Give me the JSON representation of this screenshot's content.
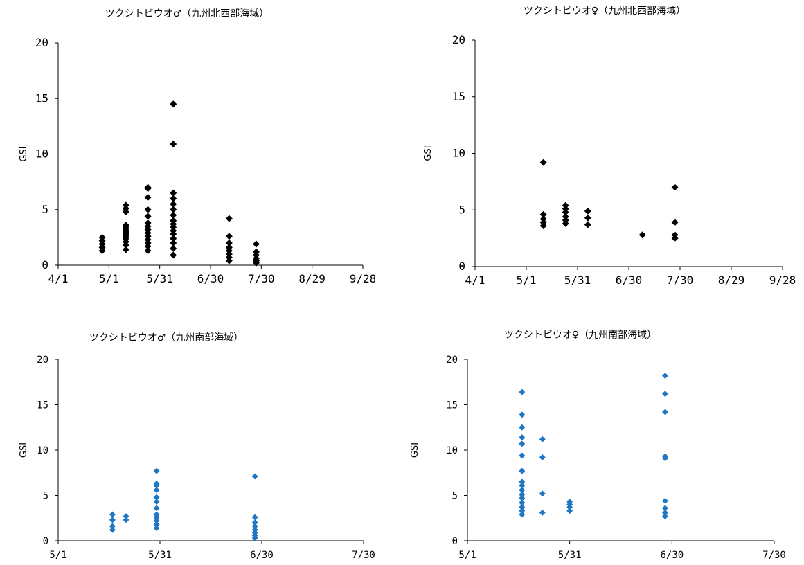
{
  "colors": {
    "black": "#000000",
    "blue": "#1f77c4"
  },
  "chart_data": [
    {
      "type": "scatter",
      "title": "ツクシトビウオ♂（九州北西部海域）",
      "ylabel": "GSI",
      "xlabel": "",
      "ylim": [
        0,
        20
      ],
      "yticks": [
        "0",
        "5",
        "10",
        "15",
        "20"
      ],
      "xlim": [
        "4/1",
        "9/28"
      ],
      "xticks": [
        "4/1",
        "5/1",
        "5/31",
        "6/30",
        "7/30",
        "8/29",
        "9/28"
      ],
      "marker_color": "#000000",
      "points": [
        {
          "x": "4/27",
          "y": 1.3
        },
        {
          "x": "4/27",
          "y": 1.6
        },
        {
          "x": "4/27",
          "y": 1.9
        },
        {
          "x": "4/27",
          "y": 2.2
        },
        {
          "x": "4/27",
          "y": 2.5
        },
        {
          "x": "5/11",
          "y": 1.4
        },
        {
          "x": "5/11",
          "y": 1.8
        },
        {
          "x": "5/11",
          "y": 2.1
        },
        {
          "x": "5/11",
          "y": 2.4
        },
        {
          "x": "5/11",
          "y": 2.6
        },
        {
          "x": "5/11",
          "y": 2.8
        },
        {
          "x": "5/11",
          "y": 3.0
        },
        {
          "x": "5/11",
          "y": 3.2
        },
        {
          "x": "5/11",
          "y": 3.4
        },
        {
          "x": "5/11",
          "y": 3.6
        },
        {
          "x": "5/11",
          "y": 4.8
        },
        {
          "x": "5/11",
          "y": 5.1
        },
        {
          "x": "5/11",
          "y": 5.4
        },
        {
          "x": "5/24",
          "y": 1.3
        },
        {
          "x": "5/24",
          "y": 1.7
        },
        {
          "x": "5/24",
          "y": 2.0
        },
        {
          "x": "5/24",
          "y": 2.3
        },
        {
          "x": "5/24",
          "y": 2.6
        },
        {
          "x": "5/24",
          "y": 2.9
        },
        {
          "x": "5/24",
          "y": 3.2
        },
        {
          "x": "5/24",
          "y": 3.5
        },
        {
          "x": "5/24",
          "y": 3.8
        },
        {
          "x": "5/24",
          "y": 4.4
        },
        {
          "x": "5/24",
          "y": 5.0
        },
        {
          "x": "5/24",
          "y": 6.1
        },
        {
          "x": "5/24",
          "y": 6.9
        },
        {
          "x": "5/24",
          "y": 7.0
        },
        {
          "x": "6/8",
          "y": 0.9
        },
        {
          "x": "6/8",
          "y": 1.5
        },
        {
          "x": "6/8",
          "y": 2.0
        },
        {
          "x": "6/8",
          "y": 2.4
        },
        {
          "x": "6/8",
          "y": 2.8
        },
        {
          "x": "6/8",
          "y": 3.1
        },
        {
          "x": "6/8",
          "y": 3.4
        },
        {
          "x": "6/8",
          "y": 3.7
        },
        {
          "x": "6/8",
          "y": 4.0
        },
        {
          "x": "6/8",
          "y": 4.5
        },
        {
          "x": "6/8",
          "y": 5.0
        },
        {
          "x": "6/8",
          "y": 5.5
        },
        {
          "x": "6/8",
          "y": 6.0
        },
        {
          "x": "6/8",
          "y": 6.5
        },
        {
          "x": "6/8",
          "y": 10.9
        },
        {
          "x": "6/8",
          "y": 14.5
        },
        {
          "x": "7/11",
          "y": 0.4
        },
        {
          "x": "7/11",
          "y": 0.7
        },
        {
          "x": "7/11",
          "y": 1.0
        },
        {
          "x": "7/11",
          "y": 1.3
        },
        {
          "x": "7/11",
          "y": 1.6
        },
        {
          "x": "7/11",
          "y": 2.0
        },
        {
          "x": "7/11",
          "y": 2.6
        },
        {
          "x": "7/11",
          "y": 4.2
        },
        {
          "x": "7/27",
          "y": 0.2
        },
        {
          "x": "7/27",
          "y": 0.4
        },
        {
          "x": "7/27",
          "y": 0.6
        },
        {
          "x": "7/27",
          "y": 0.9
        },
        {
          "x": "7/27",
          "y": 1.2
        },
        {
          "x": "7/27",
          "y": 1.9
        }
      ]
    },
    {
      "type": "scatter",
      "title": "ツクシトビウオ♀（九州北西部海域）",
      "ylabel": "GSI",
      "xlabel": "",
      "ylim": [
        0,
        20
      ],
      "yticks": [
        "0",
        "5",
        "10",
        "15",
        "20"
      ],
      "xlim": [
        "4/1",
        "9/28"
      ],
      "xticks": [
        "4/1",
        "5/1",
        "5/31",
        "6/30",
        "7/30",
        "8/29",
        "9/28"
      ],
      "marker_color": "#000000",
      "points": [
        {
          "x": "5/11",
          "y": 3.6
        },
        {
          "x": "5/11",
          "y": 3.9
        },
        {
          "x": "5/11",
          "y": 4.2
        },
        {
          "x": "5/11",
          "y": 4.6
        },
        {
          "x": "5/11",
          "y": 9.2
        },
        {
          "x": "5/24",
          "y": 3.8
        },
        {
          "x": "5/24",
          "y": 4.1
        },
        {
          "x": "5/24",
          "y": 4.4
        },
        {
          "x": "5/24",
          "y": 4.8
        },
        {
          "x": "5/24",
          "y": 5.1
        },
        {
          "x": "5/24",
          "y": 5.4
        },
        {
          "x": "6/6",
          "y": 3.7
        },
        {
          "x": "6/6",
          "y": 4.3
        },
        {
          "x": "6/6",
          "y": 4.9
        },
        {
          "x": "7/8",
          "y": 2.8
        },
        {
          "x": "7/27",
          "y": 2.5
        },
        {
          "x": "7/27",
          "y": 2.8
        },
        {
          "x": "7/27",
          "y": 3.9
        },
        {
          "x": "7/27",
          "y": 7.0
        }
      ]
    },
    {
      "type": "scatter",
      "title": "ツクシトビウオ♂（九州南部海域）",
      "ylabel": "GSI",
      "xlabel": "",
      "ylim": [
        0,
        20
      ],
      "yticks": [
        "0",
        "5",
        "10",
        "15",
        "20"
      ],
      "xlim": [
        "5/1",
        "7/30"
      ],
      "xticks": [
        "5/1",
        "5/31",
        "6/30",
        "7/30"
      ],
      "marker_color": "#1f77c4",
      "points": [
        {
          "x": "5/17",
          "y": 1.2
        },
        {
          "x": "5/17",
          "y": 1.6
        },
        {
          "x": "5/17",
          "y": 2.3
        },
        {
          "x": "5/17",
          "y": 2.9
        },
        {
          "x": "5/21",
          "y": 2.3
        },
        {
          "x": "5/21",
          "y": 2.7
        },
        {
          "x": "5/30",
          "y": 1.4
        },
        {
          "x": "5/30",
          "y": 1.8
        },
        {
          "x": "5/30",
          "y": 2.2
        },
        {
          "x": "5/30",
          "y": 2.6
        },
        {
          "x": "5/30",
          "y": 2.9
        },
        {
          "x": "5/30",
          "y": 3.6
        },
        {
          "x": "5/30",
          "y": 4.3
        },
        {
          "x": "5/30",
          "y": 4.8
        },
        {
          "x": "5/30",
          "y": 5.6
        },
        {
          "x": "5/30",
          "y": 6.1
        },
        {
          "x": "5/30",
          "y": 6.3
        },
        {
          "x": "5/30",
          "y": 7.7
        },
        {
          "x": "6/28",
          "y": 0.3
        },
        {
          "x": "6/28",
          "y": 0.6
        },
        {
          "x": "6/28",
          "y": 0.9
        },
        {
          "x": "6/28",
          "y": 1.2
        },
        {
          "x": "6/28",
          "y": 1.6
        },
        {
          "x": "6/28",
          "y": 2.0
        },
        {
          "x": "6/28",
          "y": 2.6
        },
        {
          "x": "6/28",
          "y": 7.1
        }
      ]
    },
    {
      "type": "scatter",
      "title": "ツクシトビウオ♀（九州南部海域）",
      "ylabel": "GSI",
      "xlabel": "",
      "ylim": [
        0,
        20
      ],
      "yticks": [
        "0",
        "5",
        "10",
        "15",
        "20"
      ],
      "xlim": [
        "5/1",
        "7/30"
      ],
      "xticks": [
        "5/1",
        "5/31",
        "6/30",
        "7/30"
      ],
      "marker_color": "#1f77c4",
      "points": [
        {
          "x": "5/17",
          "y": 2.9
        },
        {
          "x": "5/17",
          "y": 3.3
        },
        {
          "x": "5/17",
          "y": 3.7
        },
        {
          "x": "5/17",
          "y": 4.2
        },
        {
          "x": "5/17",
          "y": 4.7
        },
        {
          "x": "5/17",
          "y": 5.1
        },
        {
          "x": "5/17",
          "y": 5.6
        },
        {
          "x": "5/17",
          "y": 6.1
        },
        {
          "x": "5/17",
          "y": 6.5
        },
        {
          "x": "5/17",
          "y": 7.7
        },
        {
          "x": "5/17",
          "y": 9.4
        },
        {
          "x": "5/17",
          "y": 10.7
        },
        {
          "x": "5/17",
          "y": 11.4
        },
        {
          "x": "5/17",
          "y": 12.5
        },
        {
          "x": "5/17",
          "y": 13.9
        },
        {
          "x": "5/17",
          "y": 16.4
        },
        {
          "x": "5/23",
          "y": 3.1
        },
        {
          "x": "5/23",
          "y": 5.2
        },
        {
          "x": "5/23",
          "y": 9.2
        },
        {
          "x": "5/23",
          "y": 11.2
        },
        {
          "x": "5/31",
          "y": 3.3
        },
        {
          "x": "5/31",
          "y": 3.7
        },
        {
          "x": "5/31",
          "y": 4.0
        },
        {
          "x": "5/31",
          "y": 4.3
        },
        {
          "x": "6/28",
          "y": 2.7
        },
        {
          "x": "6/28",
          "y": 3.1
        },
        {
          "x": "6/28",
          "y": 3.6
        },
        {
          "x": "6/28",
          "y": 4.4
        },
        {
          "x": "6/28",
          "y": 9.1
        },
        {
          "x": "6/28",
          "y": 9.3
        },
        {
          "x": "6/28",
          "y": 14.2
        },
        {
          "x": "6/28",
          "y": 16.2
        },
        {
          "x": "6/28",
          "y": 18.2
        }
      ]
    }
  ]
}
